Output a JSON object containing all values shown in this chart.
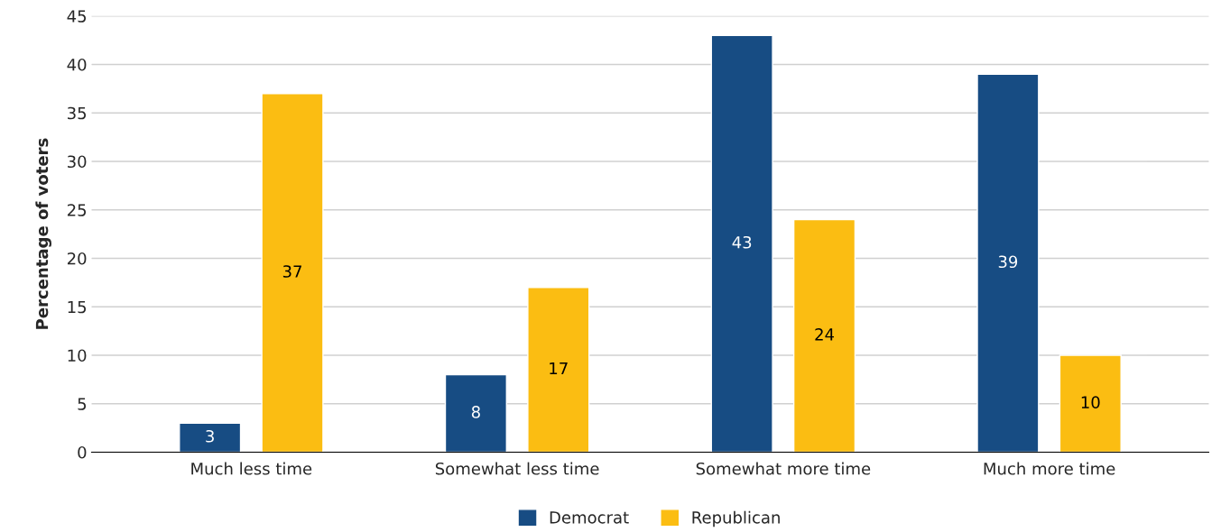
{
  "chart_data": {
    "type": "bar",
    "ylabel": "Percentage of voters",
    "categories": [
      "Much less time",
      "Somewhat less time",
      "Somewhat more time",
      "Much more time"
    ],
    "series": [
      {
        "name": "Democrat",
        "color": "#174c83",
        "values": [
          3,
          8,
          43,
          39
        ]
      },
      {
        "name": "Republican",
        "color": "#fbbd12",
        "values": [
          37,
          17,
          24,
          10
        ]
      }
    ],
    "ylim": [
      0,
      45
    ],
    "yticks": [
      0,
      5,
      10,
      15,
      20,
      25,
      30,
      35,
      40,
      45
    ],
    "grid": "y",
    "legend": "bottom",
    "data_labels": true
  }
}
